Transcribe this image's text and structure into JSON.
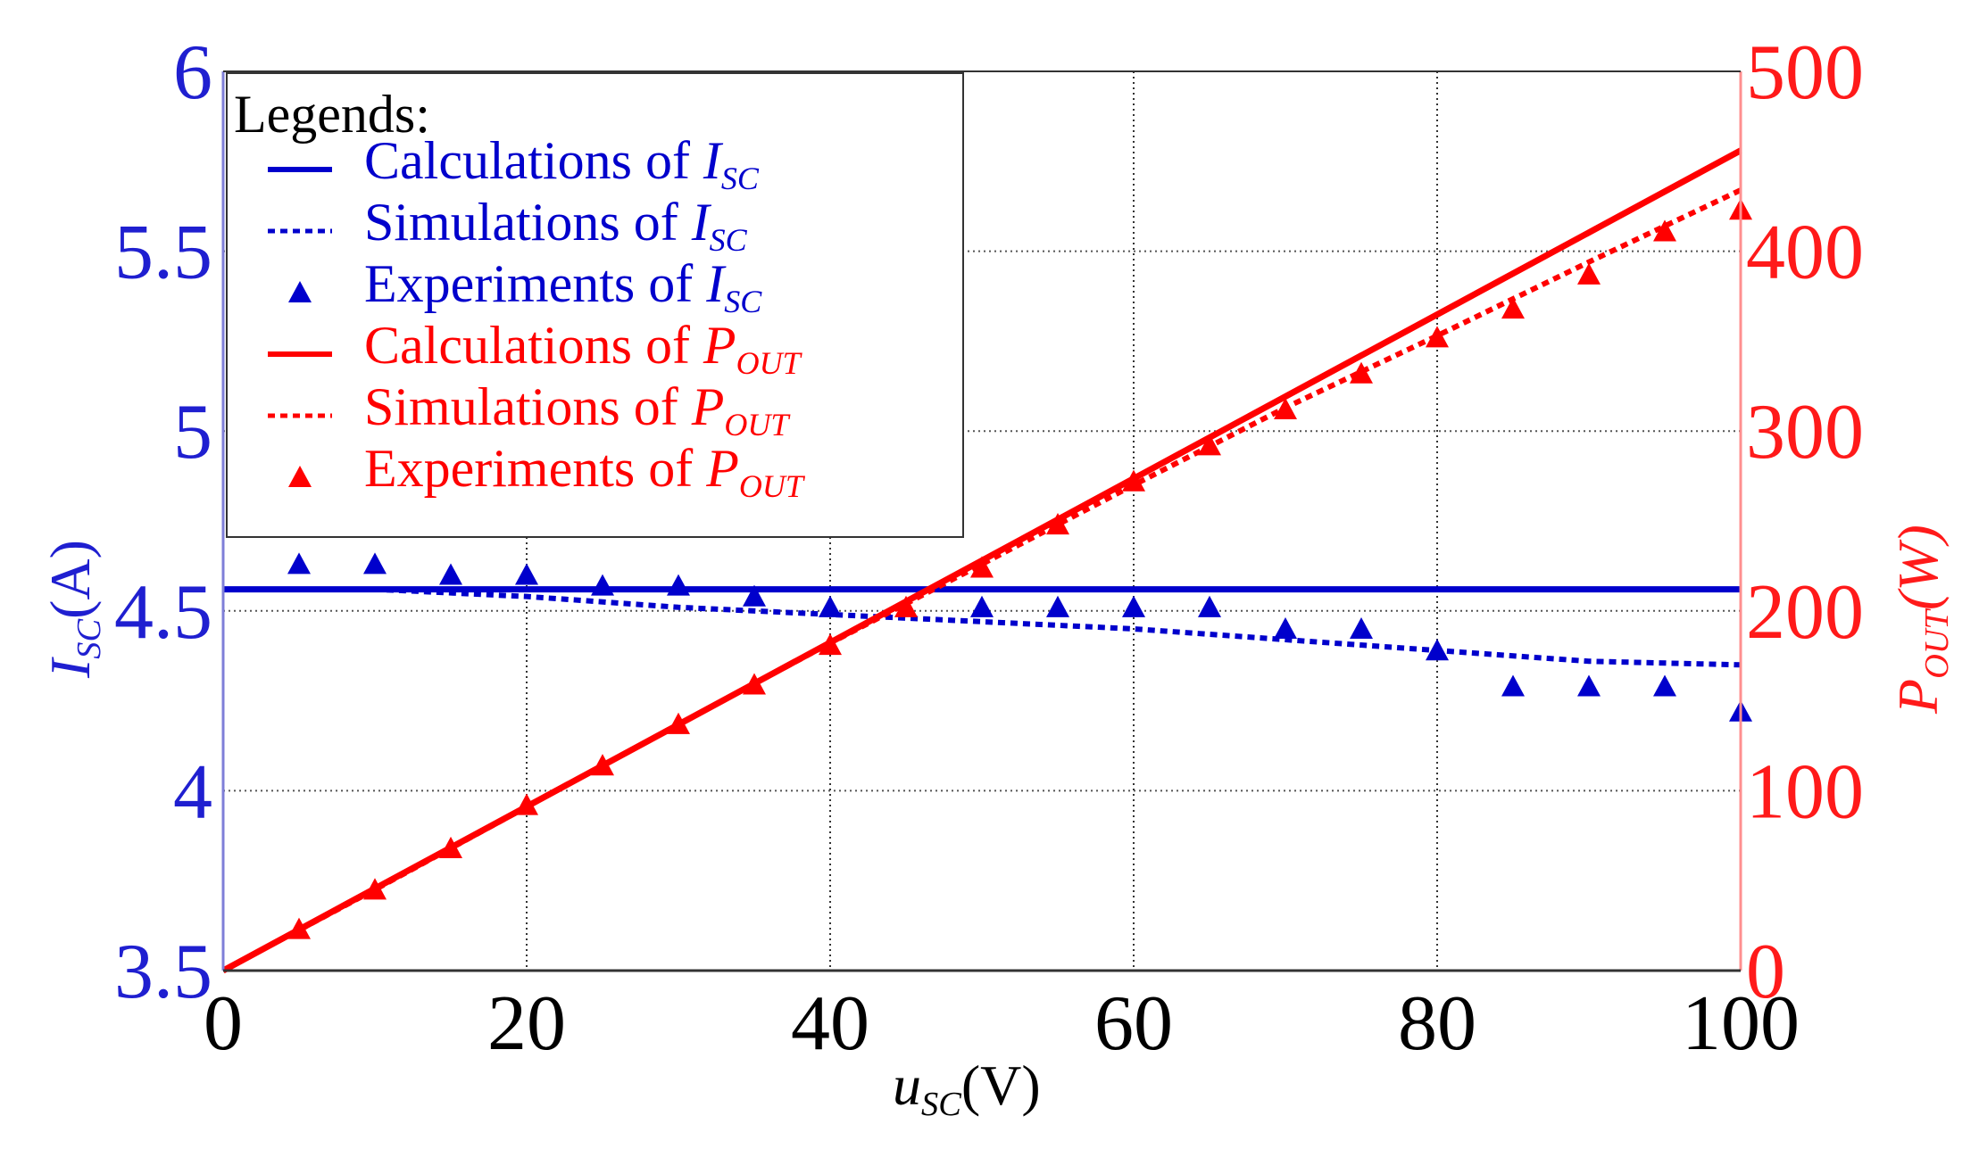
{
  "chart_data": {
    "type": "line",
    "x_axis": {
      "label_var": "u",
      "label_sub": "SC",
      "label_unit": "(V)",
      "range": [
        0,
        100
      ],
      "ticks": [
        "0",
        "20",
        "40",
        "60",
        "80",
        "100"
      ]
    },
    "y_left": {
      "label_var": "I",
      "label_sub": "SC",
      "label_unit": "(A)",
      "range": [
        3.5,
        6
      ],
      "ticks": [
        "3.5",
        "4",
        "4.5",
        "5",
        "5.5",
        "6"
      ],
      "color": "#1f1fd0"
    },
    "y_right": {
      "label_var": "P",
      "label_sub": "OUT",
      "label_unit": "(W)",
      "range": [
        0,
        500
      ],
      "ticks": [
        "0",
        "100",
        "200",
        "300",
        "400",
        "500"
      ],
      "color": "#ff1a1a"
    },
    "legend": {
      "title": "Legends:",
      "entries": [
        {
          "prefix": "Calculations of ",
          "var": "I",
          "sub": "SC",
          "color": "#0000cc",
          "style": "solid"
        },
        {
          "prefix": "Simulations of ",
          "var": "I",
          "sub": "SC",
          "color": "#0000cc",
          "style": "dotted"
        },
        {
          "prefix": "Experiments of ",
          "var": "I",
          "sub": "SC",
          "color": "#0000cc",
          "style": "marker"
        },
        {
          "prefix": "Calculations of ",
          "var": "P",
          "sub": "OUT",
          "color": "#ff0000",
          "style": "solid"
        },
        {
          "prefix": "Simulations of ",
          "var": "P",
          "sub": "OUT",
          "color": "#ff0000",
          "style": "dotted"
        },
        {
          "prefix": "Experiments of ",
          "var": "P",
          "sub": "OUT",
          "color": "#ff0000",
          "style": "marker"
        }
      ]
    },
    "series": [
      {
        "name": "Calculations of ISC",
        "axis": "left",
        "style": "solid",
        "color": "#0000cc",
        "x": [
          0,
          100
        ],
        "y": [
          4.56,
          4.56
        ]
      },
      {
        "name": "Simulations of ISC",
        "axis": "left",
        "style": "dotted",
        "color": "#0000cc",
        "x": [
          5,
          10,
          20,
          30,
          40,
          50,
          60,
          70,
          80,
          90,
          100
        ],
        "y": [
          4.56,
          4.56,
          4.54,
          4.51,
          4.49,
          4.47,
          4.45,
          4.42,
          4.39,
          4.36,
          4.35
        ]
      },
      {
        "name": "Experiments of ISC",
        "axis": "left",
        "style": "marker",
        "color": "#0000cc",
        "x": [
          5,
          10,
          15,
          20,
          25,
          30,
          35,
          40,
          50,
          55,
          60,
          65,
          70,
          75,
          80,
          85,
          90,
          95,
          100
        ],
        "y": [
          4.63,
          4.63,
          4.6,
          4.6,
          4.57,
          4.57,
          4.54,
          4.51,
          4.51,
          4.51,
          4.51,
          4.51,
          4.45,
          4.45,
          4.39,
          4.29,
          4.29,
          4.29,
          4.22
        ]
      },
      {
        "name": "Calculations of POUT",
        "axis": "right",
        "style": "solid",
        "color": "#ff0000",
        "x": [
          0,
          100
        ],
        "y": [
          0,
          456
        ]
      },
      {
        "name": "Simulations of POUT",
        "axis": "right",
        "style": "dotted",
        "color": "#ff0000",
        "x": [
          0,
          10,
          20,
          30,
          40,
          50,
          60,
          70,
          80,
          90,
          100
        ],
        "y": [
          0,
          45,
          91,
          137,
          182,
          226,
          270,
          313,
          353,
          394,
          434
        ]
      },
      {
        "name": "Experiments of POUT",
        "axis": "right",
        "style": "marker",
        "color": "#ff0000",
        "x": [
          5,
          10,
          15,
          20,
          25,
          30,
          35,
          40,
          45,
          50,
          55,
          60,
          65,
          70,
          75,
          80,
          85,
          90,
          95,
          100
        ],
        "y": [
          23,
          45,
          68,
          92,
          114,
          137,
          159,
          181,
          202,
          224,
          248,
          272,
          292,
          312,
          332,
          352,
          368,
          387,
          411,
          423
        ]
      }
    ]
  }
}
